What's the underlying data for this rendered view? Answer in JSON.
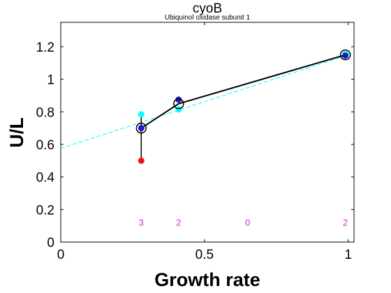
{
  "chart_data": {
    "type": "scatter",
    "title": "cyoB",
    "subtitle": "Ubiquinol oxidase subunit 1",
    "xlabel": "Growth rate",
    "ylabel": "U/L",
    "xlim": [
      0,
      1.02
    ],
    "ylim": [
      0,
      1.35
    ],
    "xticks": [
      0,
      0.5,
      1
    ],
    "xtick_labels": [
      "0",
      "0.5",
      "1"
    ],
    "yticks": [
      0,
      0.2,
      0.4,
      0.6,
      0.8,
      1.0,
      1.2
    ],
    "ytick_labels": [
      "0",
      "0.2",
      "0.4",
      "0.6",
      "0.8",
      "1",
      "1.2"
    ],
    "grid": false,
    "fit_line": {
      "intercept": 0.575,
      "slope": 0.575,
      "color": "#00ffff",
      "style": "dashed"
    },
    "mean_series": {
      "color": "#000000",
      "points": [
        {
          "x": 0.28,
          "y": 0.7
        },
        {
          "x": 0.41,
          "y": 0.85
        },
        {
          "x": 0.99,
          "y": 1.15
        }
      ]
    },
    "replicate_points": [
      {
        "x": 0.28,
        "y": 0.785,
        "color": "#00ffff"
      },
      {
        "x": 0.28,
        "y": 0.7,
        "color": "#1a1acc"
      },
      {
        "x": 0.28,
        "y": 0.5,
        "color": "#ee1111"
      },
      {
        "x": 0.41,
        "y": 0.815,
        "color": "#00ffff"
      },
      {
        "x": 0.41,
        "y": 0.875,
        "color": "#1a1acc"
      },
      {
        "x": 0.99,
        "y": 1.155,
        "color": "#00ffff"
      },
      {
        "x": 0.99,
        "y": 1.145,
        "color": "#1a1acc"
      }
    ],
    "error_bars": [
      {
        "x": 0.28,
        "low": 0.5,
        "high": 0.785
      }
    ],
    "counts": [
      {
        "x": 0.28,
        "label": "3"
      },
      {
        "x": 0.41,
        "label": "2"
      },
      {
        "x": 0.65,
        "label": "0"
      },
      {
        "x": 0.99,
        "label": "2"
      }
    ],
    "count_y": 0.1,
    "count_color": "#cc33cc"
  }
}
